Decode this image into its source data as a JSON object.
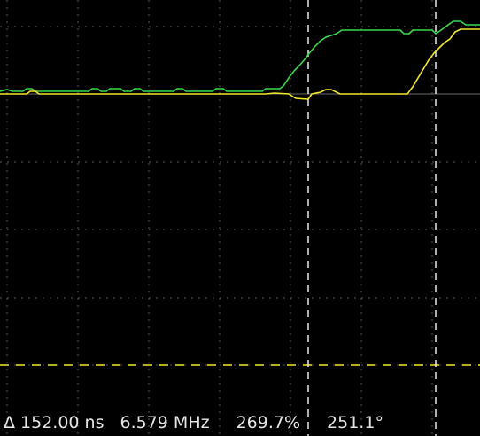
{
  "readout": {
    "delta_time": "Δ 152.00 ns",
    "frequency": "6.579 MHz",
    "duty_cycle": "269.7%",
    "phase": "251.1°"
  },
  "colors": {
    "background": "#000000",
    "grid": "#5a5a5a",
    "cursor": "#e8e8e8",
    "channel_1": "#f2e82a",
    "channel_2": "#39d94a",
    "trigger_level": "#f2e82a"
  },
  "traces": {
    "channel_2": [
      [
        0,
        103
      ],
      [
        8,
        101
      ],
      [
        14,
        103
      ],
      [
        26,
        103
      ],
      [
        30,
        100
      ],
      [
        36,
        100
      ],
      [
        40,
        103
      ],
      [
        100,
        103
      ],
      [
        104,
        100
      ],
      [
        110,
        100
      ],
      [
        114,
        103
      ],
      [
        120,
        103
      ],
      [
        124,
        100
      ],
      [
        136,
        100
      ],
      [
        140,
        103
      ],
      [
        148,
        103
      ],
      [
        152,
        100
      ],
      [
        158,
        100
      ],
      [
        162,
        103
      ],
      [
        196,
        103
      ],
      [
        200,
        100
      ],
      [
        206,
        100
      ],
      [
        210,
        103
      ],
      [
        240,
        103
      ],
      [
        244,
        100
      ],
      [
        252,
        100
      ],
      [
        256,
        103
      ],
      [
        296,
        103
      ],
      [
        300,
        100
      ],
      [
        316,
        100
      ],
      [
        320,
        97
      ],
      [
        326,
        88
      ],
      [
        332,
        80
      ],
      [
        338,
        74
      ],
      [
        344,
        67
      ],
      [
        350,
        59
      ],
      [
        356,
        52
      ],
      [
        362,
        46
      ],
      [
        368,
        42
      ],
      [
        374,
        40
      ],
      [
        380,
        38
      ],
      [
        386,
        34
      ],
      [
        452,
        34
      ],
      [
        456,
        38
      ],
      [
        462,
        38
      ],
      [
        466,
        34
      ],
      [
        488,
        34
      ],
      [
        492,
        38
      ],
      [
        498,
        34
      ],
      [
        506,
        28
      ],
      [
        512,
        24
      ],
      [
        520,
        24
      ],
      [
        526,
        28
      ],
      [
        542,
        28
      ]
    ],
    "channel_1": [
      [
        0,
        106
      ],
      [
        30,
        106
      ],
      [
        34,
        103
      ],
      [
        40,
        103
      ],
      [
        44,
        106
      ],
      [
        300,
        106
      ],
      [
        310,
        105
      ],
      [
        326,
        106
      ],
      [
        334,
        111
      ],
      [
        348,
        112
      ],
      [
        352,
        106
      ],
      [
        362,
        104
      ],
      [
        368,
        101
      ],
      [
        374,
        101
      ],
      [
        380,
        104
      ],
      [
        384,
        106
      ],
      [
        460,
        106
      ],
      [
        466,
        98
      ],
      [
        472,
        88
      ],
      [
        478,
        78
      ],
      [
        484,
        68
      ],
      [
        490,
        60
      ],
      [
        496,
        54
      ],
      [
        502,
        48
      ],
      [
        508,
        44
      ],
      [
        514,
        36
      ],
      [
        520,
        33
      ],
      [
        542,
        33
      ]
    ]
  }
}
